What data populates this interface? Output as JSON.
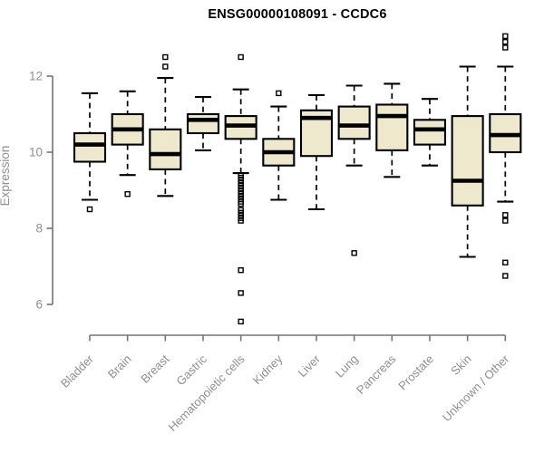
{
  "header": {
    "title": "ENSG00000108091 - CCDC6"
  },
  "chart_data": {
    "type": "boxplot",
    "title": "ENSG00000108091 - CCDC6",
    "xlabel": "",
    "ylabel": "Expression",
    "y_ticks": [
      6,
      8,
      10,
      12
    ],
    "ylim": [
      6,
      12
    ],
    "grid": false,
    "legend": false,
    "colors": {
      "background": "#FFFFFF",
      "axis": "#757575",
      "tick_label": "#8F8F8F",
      "box_fill": "#EEE8CD",
      "box_stroke": "#000000",
      "median": "#000000",
      "outlier": "#000000",
      "title": "#000000"
    },
    "categories": [
      "Bladder",
      "Brain",
      "Breast",
      "Gastric",
      "Hematopoietic cells",
      "Kidney",
      "Liver",
      "Lung",
      "Pancreas",
      "Prostate",
      "Skin",
      "Unknown / Other"
    ],
    "boxes": [
      {
        "label": "Bladder",
        "whisker_low": 8.75,
        "q1": 9.75,
        "median": 10.2,
        "q3": 10.5,
        "whisker_high": 11.55,
        "outliers": [
          8.5
        ]
      },
      {
        "label": "Brain",
        "whisker_low": 9.4,
        "q1": 10.2,
        "median": 10.6,
        "q3": 11.0,
        "whisker_high": 11.6,
        "outliers": [
          8.9
        ]
      },
      {
        "label": "Breast",
        "whisker_low": 8.85,
        "q1": 9.55,
        "median": 9.95,
        "q3": 10.6,
        "whisker_high": 11.95,
        "outliers": [
          12.5,
          12.25
        ]
      },
      {
        "label": "Gastric",
        "whisker_low": 10.05,
        "q1": 10.5,
        "median": 10.85,
        "q3": 11.0,
        "whisker_high": 11.45,
        "outliers": []
      },
      {
        "label": "Hematopoietic cells",
        "whisker_low": 9.45,
        "q1": 10.35,
        "median": 10.7,
        "q3": 10.95,
        "whisker_high": 11.65,
        "outliers": [
          12.5,
          9.4,
          9.33,
          9.26,
          9.19,
          9.12,
          9.05,
          8.98,
          8.91,
          8.84,
          8.77,
          8.7,
          8.64,
          8.48,
          8.41,
          8.34,
          8.27,
          8.2,
          6.9,
          6.3,
          5.55
        ]
      },
      {
        "label": "Kidney",
        "whisker_low": 8.75,
        "q1": 9.65,
        "median": 10.0,
        "q3": 10.35,
        "whisker_high": 11.2,
        "outliers": [
          11.55
        ]
      },
      {
        "label": "Liver",
        "whisker_low": 8.5,
        "q1": 9.9,
        "median": 10.9,
        "q3": 11.1,
        "whisker_high": 11.5,
        "outliers": []
      },
      {
        "label": "Lung",
        "whisker_low": 9.65,
        "q1": 10.35,
        "median": 10.7,
        "q3": 11.2,
        "whisker_high": 11.75,
        "outliers": [
          7.35
        ]
      },
      {
        "label": "Pancreas",
        "whisker_low": 9.35,
        "q1": 10.05,
        "median": 10.95,
        "q3": 11.25,
        "whisker_high": 11.8,
        "outliers": []
      },
      {
        "label": "Prostate",
        "whisker_low": 9.65,
        "q1": 10.2,
        "median": 10.6,
        "q3": 10.85,
        "whisker_high": 11.4,
        "outliers": []
      },
      {
        "label": "Skin",
        "whisker_low": 7.25,
        "q1": 8.6,
        "median": 9.25,
        "q3": 10.95,
        "whisker_high": 12.25,
        "outliers": []
      },
      {
        "label": "Unknown / Other",
        "whisker_low": 8.7,
        "q1": 10.0,
        "median": 10.45,
        "q3": 11.0,
        "whisker_high": 12.25,
        "outliers": [
          13.05,
          12.9,
          12.75,
          8.35,
          8.2,
          7.1,
          6.75
        ]
      }
    ]
  }
}
